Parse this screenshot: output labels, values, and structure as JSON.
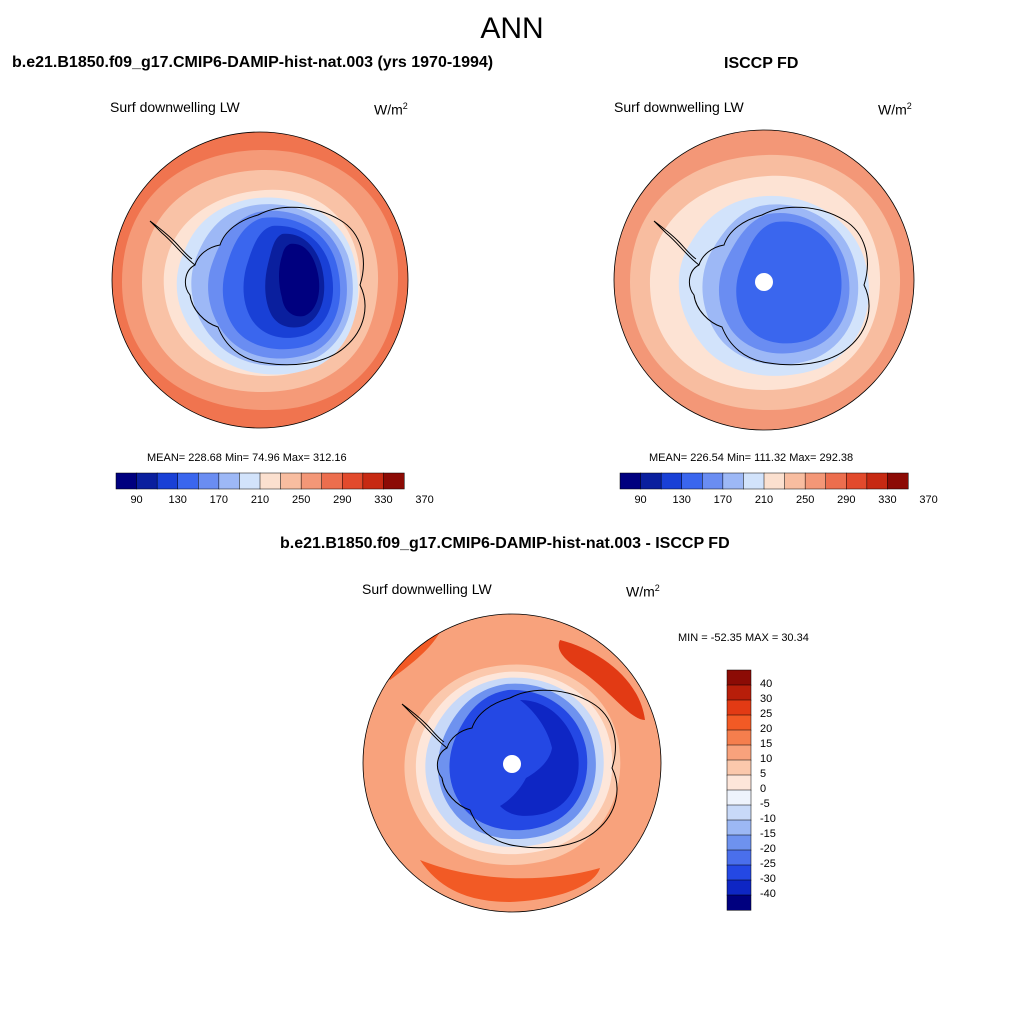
{
  "main_title": "ANN",
  "units": {
    "base": "W/m",
    "exp": "2"
  },
  "panels": [
    {
      "title": "b.e21.B1850.f09_g17.CMIP6-DAMIP-hist-nat.003 (yrs 1970-1994)",
      "variable": "Surf downwelling LW",
      "stats": "MEAN= 228.68  Min=  74.96  Max= 312.16",
      "colorbar": {
        "colors": [
          "#00007f",
          "#0a1f9e",
          "#1940d6",
          "#3a66ee",
          "#6a8df2",
          "#9db8f6",
          "#d2e3fb",
          "#fbe0cf",
          "#f8bda0",
          "#f39777",
          "#ec6e4e",
          "#e24a2c",
          "#c72a13",
          "#8c0b05"
        ],
        "labels": [
          "90",
          "130",
          "170",
          "210",
          "250",
          "290",
          "330",
          "370"
        ]
      },
      "map": {
        "projection": "south-polar-stereographic",
        "field_levels_outer_to_inner": [
          "#f0744f",
          "#f59a78",
          "#f9c2a6",
          "#fde3d4",
          "#d2e3fb",
          "#9db8f6",
          "#6a8df2",
          "#3a66ee",
          "#1940d6",
          "#0a1f9e",
          "#00007f"
        ],
        "pole_missing": false
      }
    },
    {
      "title": "ISCCP FD",
      "variable": "Surf downwelling LW",
      "stats": "MEAN= 226.54  Min= 111.32  Max= 292.38",
      "colorbar": {
        "colors": [
          "#00007f",
          "#0a1f9e",
          "#1940d6",
          "#3a66ee",
          "#6a8df2",
          "#9db8f6",
          "#d2e3fb",
          "#fbe0cf",
          "#f8bda0",
          "#f39777",
          "#ec6e4e",
          "#e24a2c",
          "#c72a13",
          "#8c0b05"
        ],
        "labels": [
          "90",
          "130",
          "170",
          "210",
          "250",
          "290",
          "330",
          "370"
        ]
      },
      "map": {
        "projection": "south-polar-stereographic",
        "field_levels_outer_to_inner": [
          "#f39777",
          "#f8bda0",
          "#fde3d4",
          "#d2e3fb",
          "#9db8f6",
          "#6a8df2",
          "#3a66ee",
          "#1940d6"
        ],
        "pole_missing": true
      }
    },
    {
      "title": "b.e21.B1850.f09_g17.CMIP6-DAMIP-hist-nat.003 - ISCCP FD",
      "variable": "Surf downwelling LW",
      "stats": "MIN = -52.35 MAX =  30.34",
      "colorbar": {
        "colors": [
          "#8c0b05",
          "#b81e0a",
          "#e23a14",
          "#f25a25",
          "#f57e4d",
          "#f8a27c",
          "#fbc8ac",
          "#fde6da",
          "#eef3fc",
          "#c8d9f8",
          "#9cb8f4",
          "#6e92ef",
          "#4a6fec",
          "#2448e4",
          "#0e26c4",
          "#00007f"
        ],
        "labels": [
          "40",
          "30",
          "25",
          "20",
          "15",
          "10",
          "5",
          "0",
          "-5",
          "-10",
          "-15",
          "-20",
          "-25",
          "-30",
          "-40"
        ]
      },
      "map": {
        "projection": "south-polar-stereographic",
        "field_levels_outer_to_inner": [
          "#f8a27c",
          "#fbc8ac",
          "#fde6da",
          "#c8d9f8",
          "#6e92ef",
          "#2448e4",
          "#0e26c4"
        ],
        "pole_missing": true
      }
    }
  ]
}
